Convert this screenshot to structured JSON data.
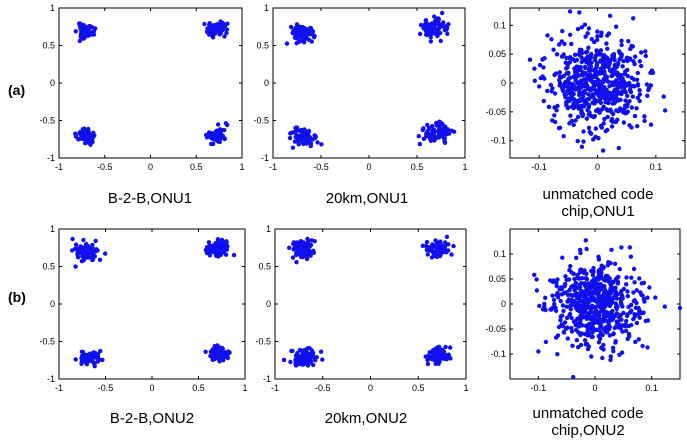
{
  "row_labels": [
    "(a)",
    "(b)"
  ],
  "dot_color": "#1010ee",
  "panels": [
    {
      "caption": "B-2-B,ONU1"
    },
    {
      "caption": "20km,ONU1"
    },
    {
      "caption_lines": [
        "unmatched code",
        "chip,ONU1"
      ]
    },
    {
      "caption": "B-2-B,ONU2"
    },
    {
      "caption": "20km,ONU2"
    },
    {
      "caption_lines": [
        "unmatched code",
        "chip,ONU2"
      ]
    }
  ],
  "chart_data": [
    {
      "type": "scatter",
      "caption": "B-2-B,ONU1",
      "xlim": [
        -1,
        1
      ],
      "ylim": [
        -1,
        1
      ],
      "xticks": [
        -1,
        -0.5,
        0,
        0.5,
        1
      ],
      "yticks": [
        1,
        0.5,
        0,
        -0.5,
        -1
      ],
      "xtick_labels": [
        "-1",
        "-0.5",
        "0",
        "0.5",
        "1"
      ],
      "ytick_labels": [
        "1",
        "0.5",
        "0",
        "-0.5",
        "-1"
      ],
      "clusters": [
        {
          "center": [
            -0.71,
            0.69
          ],
          "spread": 0.045
        },
        {
          "center": [
            0.71,
            0.71
          ],
          "spread": 0.045
        },
        {
          "center": [
            -0.71,
            -0.71
          ],
          "spread": 0.045
        },
        {
          "center": [
            0.72,
            -0.71
          ],
          "spread": 0.05
        }
      ],
      "points_per_cluster": 70,
      "seed": 11
    },
    {
      "type": "scatter",
      "caption": "20km,ONU1",
      "xlim": [
        -1,
        1
      ],
      "ylim": [
        -1,
        1
      ],
      "xticks": [
        -1,
        -0.5,
        0,
        0.5,
        1
      ],
      "yticks": [
        1,
        0.5,
        0,
        -0.5,
        -1
      ],
      "xtick_labels": [
        "-1",
        "-0.5",
        "0",
        "0.5",
        "1"
      ],
      "ytick_labels": [
        "1",
        "0.5",
        "0",
        "-0.5",
        "-1"
      ],
      "clusters": [
        {
          "center": [
            -0.7,
            0.66
          ],
          "spread": 0.06
        },
        {
          "center": [
            0.68,
            0.72
          ],
          "spread": 0.065
        },
        {
          "center": [
            -0.7,
            -0.72
          ],
          "spread": 0.06
        },
        {
          "center": [
            0.72,
            -0.68
          ],
          "spread": 0.07
        }
      ],
      "points_per_cluster": 80,
      "seed": 23
    },
    {
      "type": "scatter",
      "caption": "unmatched code chip,ONU1",
      "xlim": [
        -0.15,
        0.15
      ],
      "ylim": [
        -0.13,
        0.13
      ],
      "xticks": [
        -0.1,
        0,
        0.1
      ],
      "yticks": [
        0.1,
        0.05,
        0,
        -0.05,
        -0.1
      ],
      "xtick_labels": [
        "-0.1",
        "0",
        "0.1"
      ],
      "ytick_labels": [
        "0.1",
        "0.05",
        "0",
        "-0.05",
        "-0.1"
      ],
      "clusters": [
        {
          "center": [
            0,
            0
          ],
          "spread": 0.04
        }
      ],
      "points_per_cluster": 600,
      "seed": 37
    },
    {
      "type": "scatter",
      "caption": "B-2-B,ONU2",
      "xlim": [
        -1,
        1
      ],
      "ylim": [
        -1,
        1
      ],
      "xticks": [
        -1,
        -0.5,
        0,
        0.5,
        1
      ],
      "yticks": [
        1,
        0.5,
        0,
        -0.5,
        -1
      ],
      "xtick_labels": [
        "-1",
        "-0.5",
        "0",
        "0.5",
        "1"
      ],
      "ytick_labels": [
        "1",
        "0.5",
        "0",
        "-0.5",
        "-1"
      ],
      "clusters": [
        {
          "center": [
            -0.7,
            0.7
          ],
          "spread": 0.06
        },
        {
          "center": [
            0.71,
            0.74
          ],
          "spread": 0.06
        },
        {
          "center": [
            -0.68,
            -0.71
          ],
          "spread": 0.05
        },
        {
          "center": [
            0.72,
            -0.66
          ],
          "spread": 0.05
        }
      ],
      "points_per_cluster": 80,
      "seed": 41
    },
    {
      "type": "scatter",
      "caption": "20km,ONU2",
      "xlim": [
        -1,
        1
      ],
      "ylim": [
        -1,
        1
      ],
      "xticks": [
        -1,
        -0.5,
        0,
        0.5,
        1
      ],
      "yticks": [
        1,
        0.5,
        0,
        -0.5,
        -1
      ],
      "xtick_labels": [
        "-1",
        "-0.5",
        "0",
        "0.5",
        "1"
      ],
      "ytick_labels": [
        "1",
        "0.5",
        "0",
        "-0.5",
        "-1"
      ],
      "clusters": [
        {
          "center": [
            -0.72,
            0.73
          ],
          "spread": 0.06
        },
        {
          "center": [
            0.71,
            0.75
          ],
          "spread": 0.06
        },
        {
          "center": [
            -0.7,
            -0.72
          ],
          "spread": 0.06
        },
        {
          "center": [
            0.71,
            -0.68
          ],
          "spread": 0.055
        }
      ],
      "points_per_cluster": 80,
      "seed": 53
    },
    {
      "type": "scatter",
      "caption": "unmatched code chip,ONU2",
      "xlim": [
        -0.15,
        0.15
      ],
      "ylim": [
        -0.15,
        0.15
      ],
      "xticks": [
        -0.1,
        0,
        0.1
      ],
      "yticks": [
        0.1,
        0.05,
        0,
        -0.05,
        -0.1
      ],
      "xtick_labels": [
        "-0.1",
        "0",
        "0.1"
      ],
      "ytick_labels": [
        "0.1",
        "0.05",
        "0",
        "-0.05",
        "-0.1"
      ],
      "clusters": [
        {
          "center": [
            0,
            0
          ],
          "spread": 0.04
        }
      ],
      "points_per_cluster": 600,
      "seed": 67
    }
  ]
}
